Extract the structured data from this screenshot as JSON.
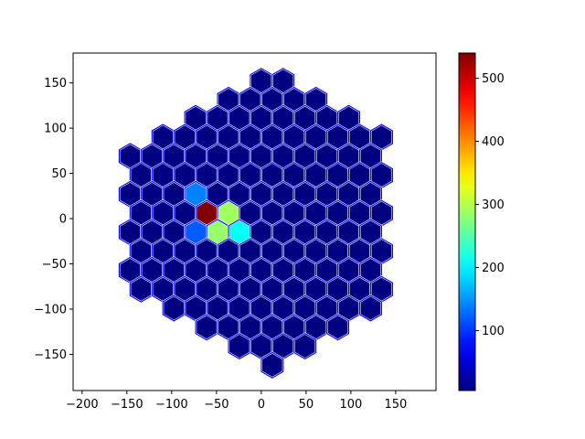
{
  "chart_data": {
    "type": "hexbin",
    "title": "",
    "xlabel": "",
    "ylabel": "",
    "xlim": [
      -210,
      195
    ],
    "ylim": [
      -190,
      183
    ],
    "xticks": [
      -200,
      -150,
      -100,
      -50,
      0,
      50,
      100,
      150
    ],
    "yticks": [
      -150,
      -100,
      -50,
      0,
      50,
      100,
      150
    ],
    "xtick_labels": [
      "−200",
      "−150",
      "−100",
      "−50",
      "0",
      "50",
      "100",
      "150"
    ],
    "ytick_labels": [
      "−150",
      "−100",
      "−50",
      "0",
      "50",
      "100",
      "150"
    ],
    "colormap": "jet",
    "clim": [
      5,
      540
    ],
    "colorbar_ticks": [
      100,
      200,
      300,
      400,
      500
    ],
    "colorbar_tick_labels": [
      "100",
      "200",
      "300",
      "400",
      "500"
    ],
    "hex_edge_color": "#0000ff",
    "hex_spacing": [
      24.4,
      21.1
    ],
    "rows": [
      {
        "y": 152,
        "x": [
          0,
          24.4
        ]
      },
      {
        "y": 131,
        "x": [
          -36.6,
          -12.2,
          12.2,
          36.6,
          61
        ]
      },
      {
        "y": 111,
        "x": [
          -73.2,
          -48.8,
          -24.4,
          0,
          24.4,
          48.8,
          73.2,
          97.6
        ]
      },
      {
        "y": 90,
        "x": [
          -109.8,
          -85.4,
          -61,
          -36.6,
          -12.2,
          12.2,
          36.6,
          61,
          85.4,
          109.8,
          134.2
        ]
      },
      {
        "y": 69,
        "x": [
          -146.4,
          -122,
          -97.6,
          -73.2,
          -48.8,
          -24.4,
          0,
          24.4,
          48.8,
          73.2,
          97.6,
          122
        ]
      },
      {
        "y": 48,
        "x": [
          -134.2,
          -109.8,
          -85.4,
          -61,
          -36.6,
          -12.2,
          12.2,
          36.6,
          61,
          85.4,
          109.8,
          134.2
        ]
      },
      {
        "y": 27,
        "x": [
          -146.4,
          -122,
          -97.6,
          -73.2,
          -48.8,
          -24.4,
          0,
          24.4,
          48.8,
          73.2,
          97.6,
          122
        ]
      },
      {
        "y": 6,
        "x": [
          -134.2,
          -109.8,
          -85.4,
          -61,
          -36.6,
          -12.2,
          12.2,
          36.6,
          61,
          85.4,
          109.8,
          134.2
        ]
      },
      {
        "y": -15,
        "x": [
          -146.4,
          -122,
          -97.6,
          -73.2,
          -48.8,
          -24.4,
          0,
          24.4,
          48.8,
          73.2,
          97.6,
          122
        ]
      },
      {
        "y": -36,
        "x": [
          -134.2,
          -109.8,
          -85.4,
          -61,
          -36.6,
          -12.2,
          12.2,
          36.6,
          61,
          85.4,
          109.8,
          134.2
        ]
      },
      {
        "y": -57,
        "x": [
          -146.4,
          -122,
          -97.6,
          -73.2,
          -48.8,
          -24.4,
          0,
          24.4,
          48.8,
          73.2,
          97.6,
          122
        ]
      },
      {
        "y": -78,
        "x": [
          -134.2,
          -109.8,
          -85.4,
          -61,
          -36.6,
          -12.2,
          12.2,
          36.6,
          61,
          85.4,
          109.8,
          134.2
        ]
      },
      {
        "y": -99,
        "x": [
          -97.6,
          -73.2,
          -48.8,
          -24.4,
          0,
          24.4,
          48.8,
          73.2,
          97.6,
          122
        ]
      },
      {
        "y": -120,
        "x": [
          -61,
          -36.6,
          -12.2,
          12.2,
          36.6,
          61,
          85.4
        ]
      },
      {
        "y": -141,
        "x": [
          -24.4,
          0,
          24.4,
          48.8
        ]
      },
      {
        "y": -162,
        "x": [
          12.2
        ]
      }
    ],
    "default_value": 5,
    "highlighted": [
      {
        "x": -73.2,
        "y": 27,
        "value": 140
      },
      {
        "x": -61,
        "y": 6,
        "value": 540
      },
      {
        "x": -36.6,
        "y": 6,
        "value": 290
      },
      {
        "x": -73.2,
        "y": -15,
        "value": 120
      },
      {
        "x": -48.8,
        "y": -15,
        "value": 285
      },
      {
        "x": -24.4,
        "y": -15,
        "value": 210
      }
    ]
  }
}
